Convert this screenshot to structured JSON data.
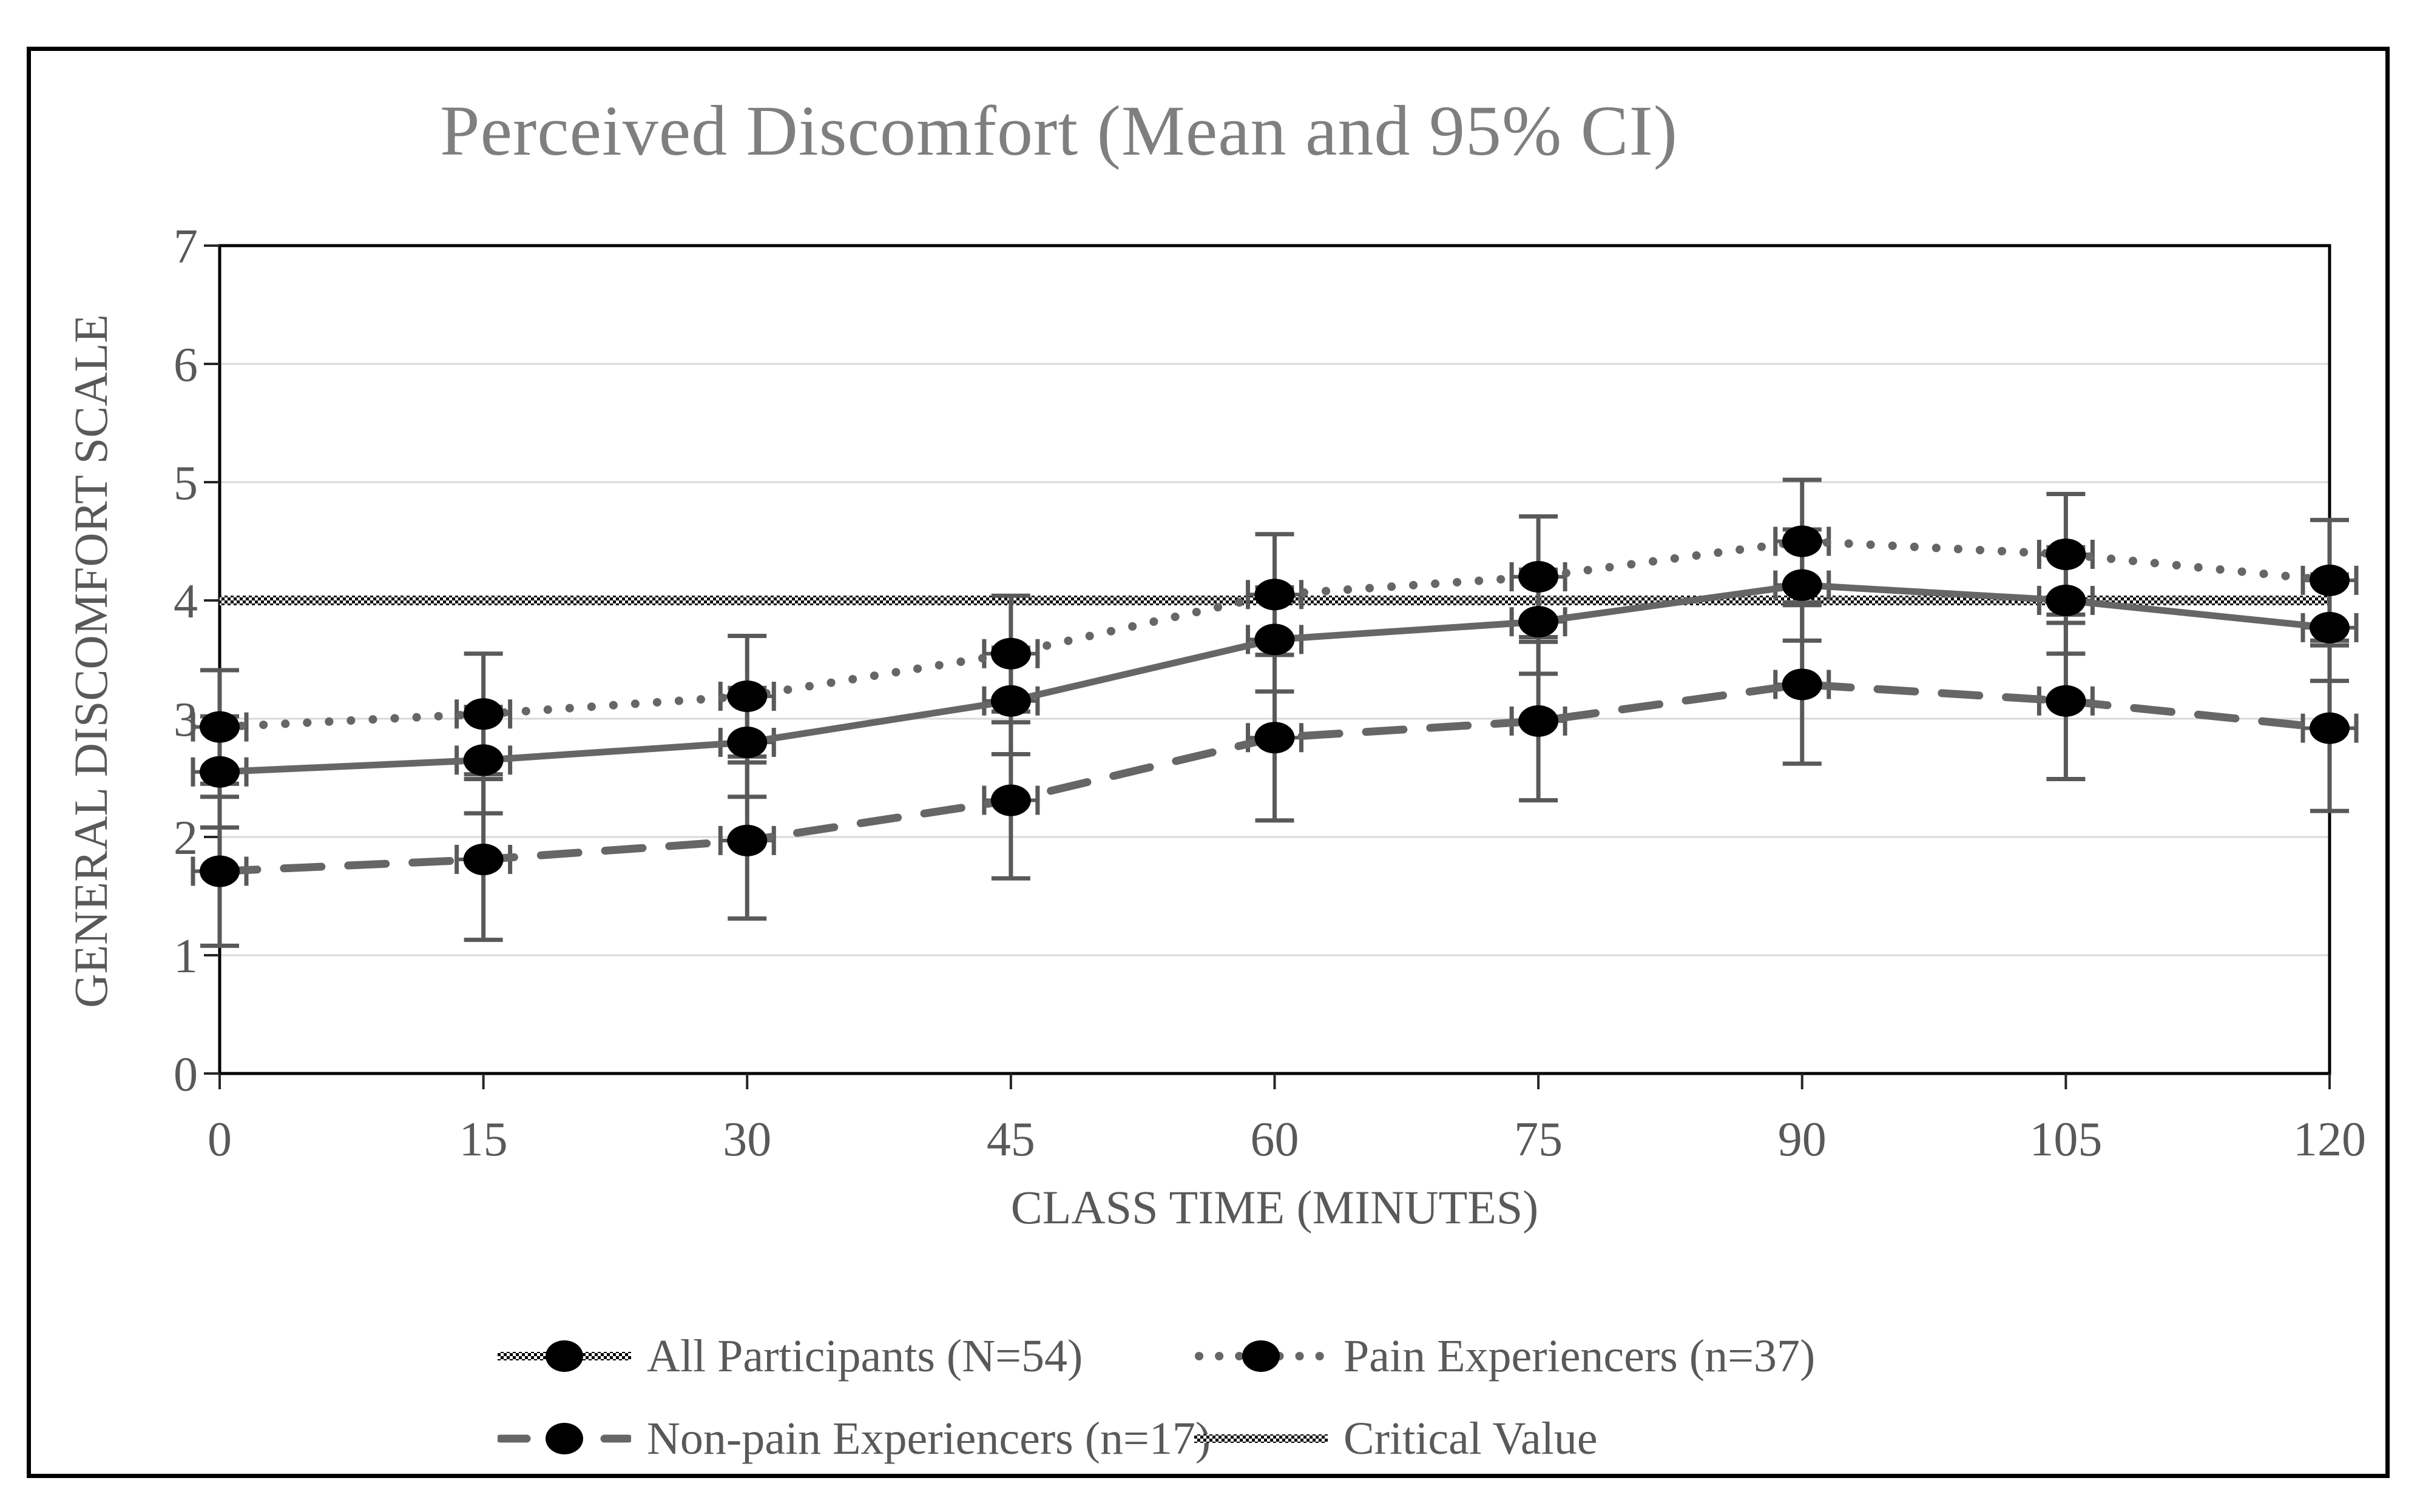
{
  "chart_data": {
    "type": "line",
    "title": "Perceived Discomfort (Mean and 95% CI)",
    "xlabel": "CLASS TIME (MINUTES)",
    "ylabel": "GENERAL DISCOMFORT SCALE",
    "x": [
      0,
      15,
      30,
      45,
      60,
      75,
      90,
      105,
      120
    ],
    "ylim": [
      0,
      7
    ],
    "yticks": [
      0,
      1,
      2,
      3,
      4,
      5,
      6,
      7
    ],
    "grid": "horizontal",
    "legend_position": "bottom",
    "critical_value": 4,
    "critical_label": "Critical Value",
    "series": [
      {
        "name": "All Participants (N=54)",
        "style": "solid",
        "marker": "circle",
        "values": [
          2.55,
          2.65,
          2.8,
          3.15,
          3.67,
          3.82,
          4.13,
          4.0,
          3.77
        ],
        "ci": [
          0.47,
          0.45,
          0.46,
          0.45,
          0.44,
          0.44,
          0.47,
          0.45,
          0.45
        ]
      },
      {
        "name": "Pain Experiencers (n=37)",
        "style": "dotted",
        "marker": "circle",
        "values": [
          2.93,
          3.04,
          3.19,
          3.55,
          4.05,
          4.2,
          4.5,
          4.39,
          4.17
        ],
        "ci": [
          0.48,
          0.51,
          0.51,
          0.49,
          0.51,
          0.51,
          0.52,
          0.51,
          0.51
        ]
      },
      {
        "name": "Non-pain Experiencers (n=17)",
        "style": "dashed",
        "marker": "circle",
        "values": [
          1.71,
          1.81,
          1.97,
          2.31,
          2.84,
          2.98,
          3.29,
          3.15,
          2.92
        ],
        "ci": [
          0.63,
          0.68,
          0.66,
          0.66,
          0.7,
          0.67,
          0.67,
          0.66,
          0.7
        ]
      }
    ],
    "colors": {
      "line_gray": "#666666",
      "marker_black": "#000000",
      "errorbar_gray": "#595959",
      "gridline_gray": "#d9d9d9",
      "text_gray": "#595959",
      "title_gray": "#7f7f7f",
      "axis_black": "#000000"
    }
  }
}
